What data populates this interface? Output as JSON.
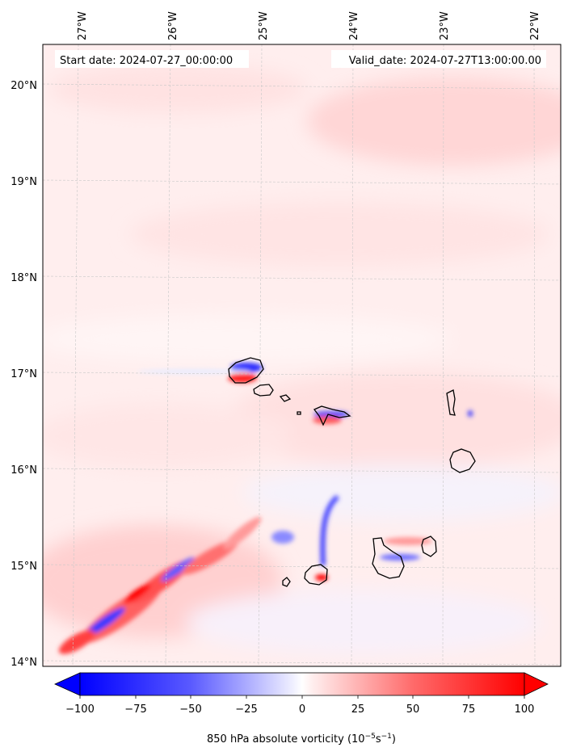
{
  "map": {
    "header": {
      "start_date": "Start date: 2024-07-27_00:00:00",
      "valid_date": "Valid_date: 2024-07-27T13:00:00.00"
    },
    "lon_labels": [
      "27°W",
      "26°W",
      "25°W",
      "24°W",
      "23°W",
      "22°W"
    ],
    "lat_labels": [
      "20°N",
      "19°N",
      "18°N",
      "17°N",
      "16°N",
      "15°N",
      "14°N"
    ],
    "colorbar": {
      "ticks": [
        "−100",
        "−75",
        "−50",
        "−25",
        "0",
        "25",
        "50",
        "75",
        "100"
      ],
      "label_main": "850 hPa absolute vorticity (10",
      "label_exp1": "−5",
      "label_mid": "s",
      "label_exp2": "−1",
      "label_end": ")"
    },
    "colors": {
      "negative": "#0000ff",
      "positive": "#ff0000",
      "background_pink": "#ffe8e8",
      "coastline": "#000000"
    }
  }
}
